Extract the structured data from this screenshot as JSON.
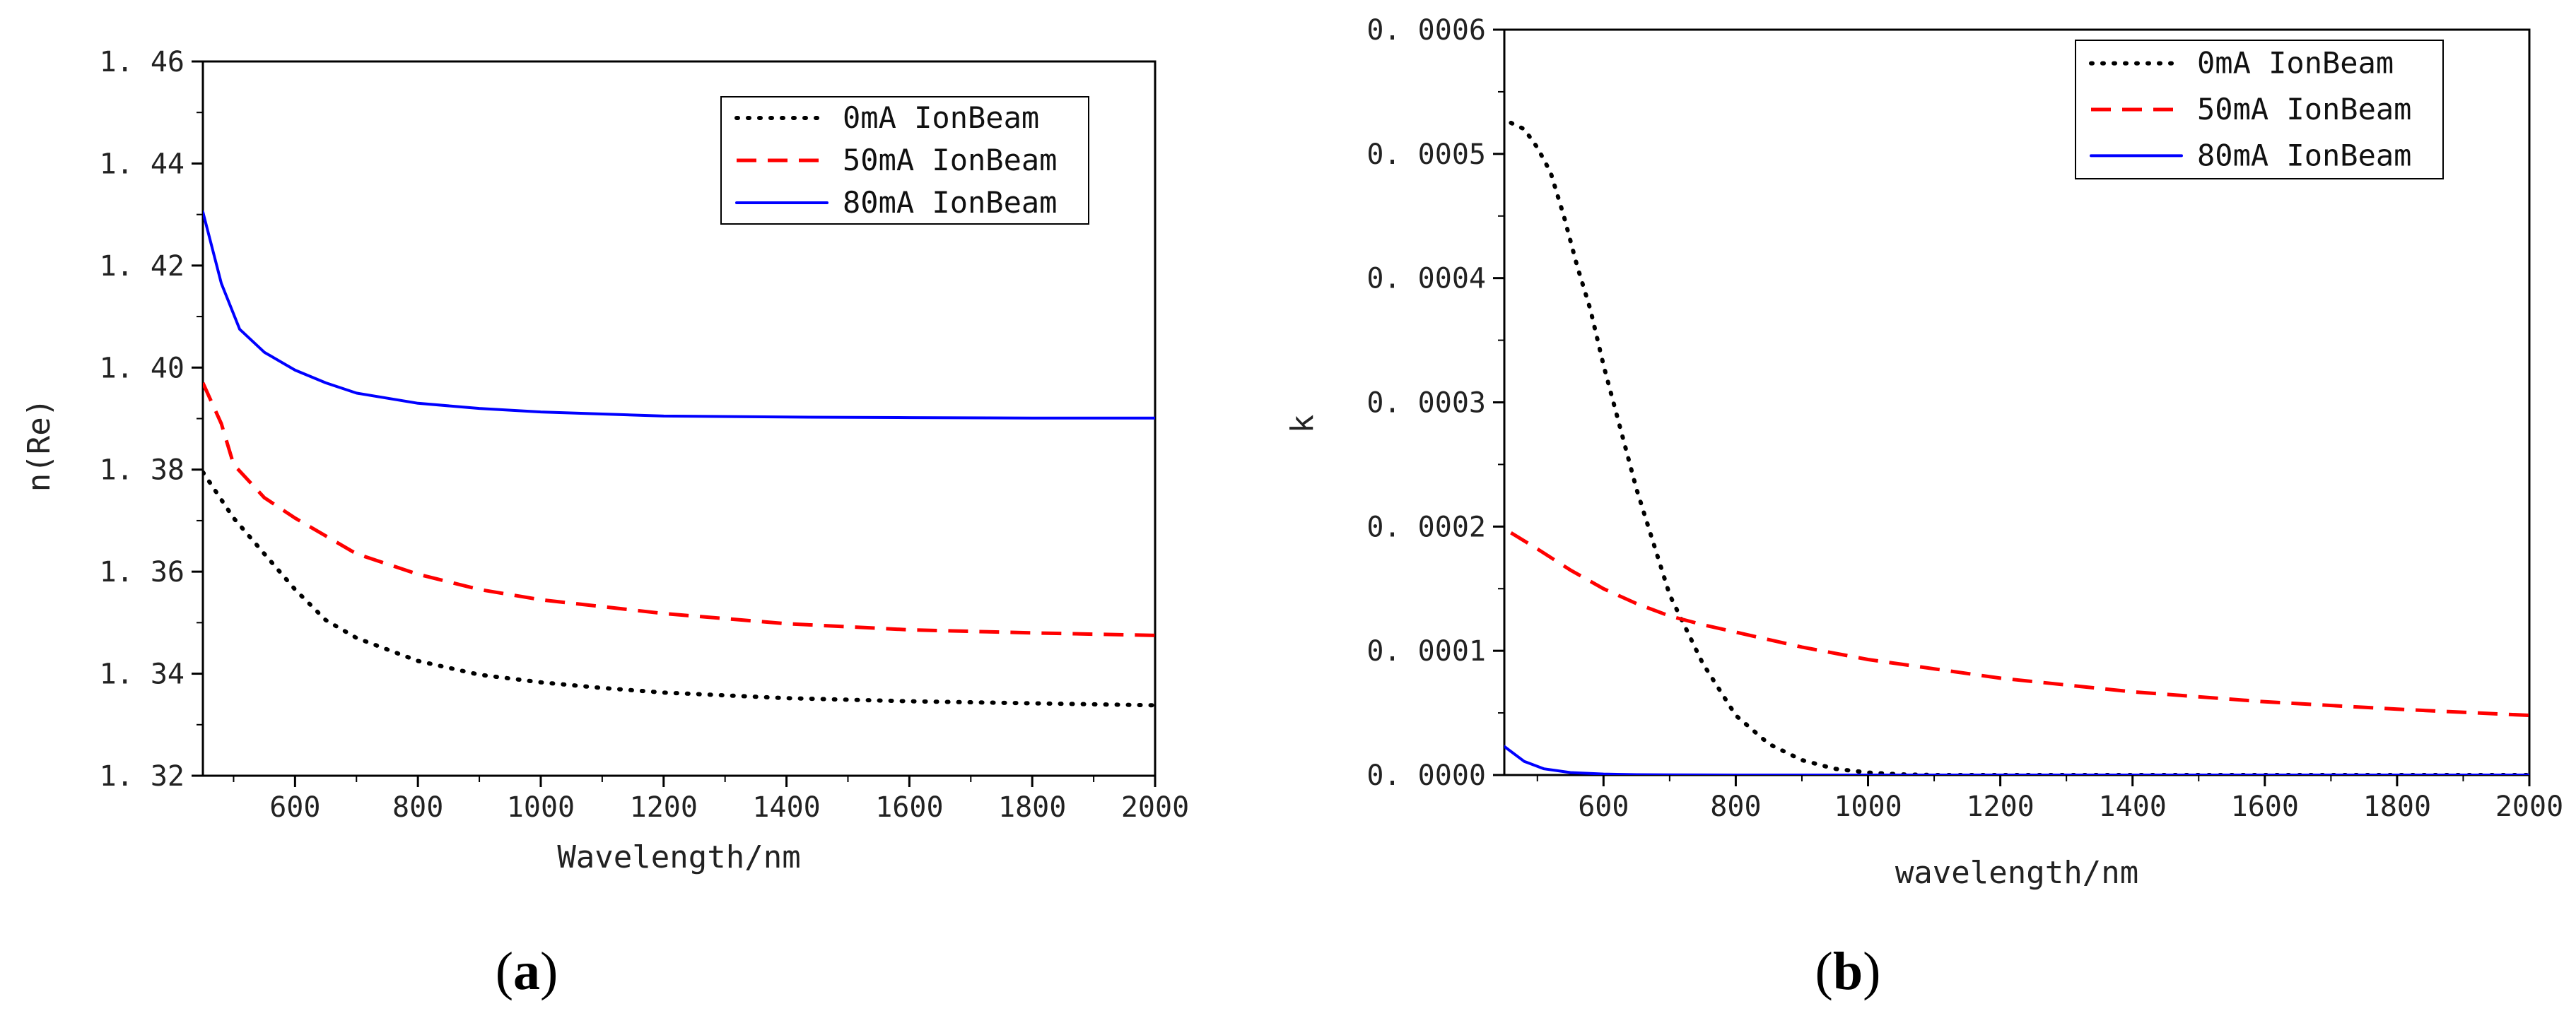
{
  "figure": {
    "captions": [
      {
        "open": "(",
        "letter": "a",
        "close": ")"
      },
      {
        "open": "(",
        "letter": "b",
        "close": ")"
      }
    ]
  },
  "chart_data": [
    {
      "type": "line",
      "title": "",
      "xlabel": "Wavelength/nm",
      "ylabel": "n(Re)",
      "xlim": [
        450,
        2000
      ],
      "ylim": [
        1.32,
        1.46
      ],
      "xticks": [
        600,
        800,
        1000,
        1200,
        1400,
        1600,
        1800,
        2000
      ],
      "xtick_labels": [
        "600",
        "800",
        "1000",
        "1200",
        "1400",
        "1600",
        "1800",
        "2000"
      ],
      "yticks": [
        1.32,
        1.34,
        1.36,
        1.38,
        1.4,
        1.42,
        1.44,
        1.46
      ],
      "ytick_labels": [
        "1. 32",
        "1. 34",
        "1. 36",
        "1. 38",
        "1. 40",
        "1. 42",
        "1. 44",
        "1. 46"
      ],
      "legend_position": "top-right",
      "grid": false,
      "series": [
        {
          "name": "0mA IonBeam",
          "color": "#000000",
          "dash": "dotted",
          "x": [
            450,
            500,
            550,
            600,
            650,
            700,
            800,
            900,
            1000,
            1100,
            1200,
            1400,
            1600,
            1800,
            2000
          ],
          "y": [
            1.3795,
            1.3705,
            1.3635,
            1.3565,
            1.3505,
            1.347,
            1.3425,
            1.3398,
            1.3383,
            1.3372,
            1.3363,
            1.3352,
            1.3346,
            1.3342,
            1.3338
          ]
        },
        {
          "name": "50mA IonBeam",
          "color": "#ff0000",
          "dash": "dashed",
          "x": [
            450,
            480,
            500,
            550,
            600,
            700,
            800,
            900,
            1000,
            1200,
            1400,
            1600,
            1800,
            2000
          ],
          "y": [
            1.397,
            1.389,
            1.381,
            1.3745,
            1.3705,
            1.3635,
            1.3595,
            1.3565,
            1.3545,
            1.3518,
            1.3498,
            1.3486,
            1.348,
            1.3475
          ]
        },
        {
          "name": "80mA IonBeam",
          "color": "#0000ff",
          "dash": "solid",
          "x": [
            450,
            480,
            510,
            550,
            600,
            650,
            700,
            800,
            900,
            1000,
            1200,
            1400,
            1600,
            1800,
            2000
          ],
          "y": [
            1.4305,
            1.4165,
            1.4075,
            1.403,
            1.3995,
            1.397,
            1.395,
            1.393,
            1.392,
            1.3913,
            1.3905,
            1.3903,
            1.3902,
            1.3901,
            1.3901
          ]
        }
      ]
    },
    {
      "type": "line",
      "title": "",
      "xlabel": "wavelength/nm",
      "ylabel": "k",
      "xlim": [
        450,
        2000
      ],
      "ylim": [
        0,
        0.0006
      ],
      "xticks": [
        600,
        800,
        1000,
        1200,
        1400,
        1600,
        1800,
        2000
      ],
      "xtick_labels": [
        "600",
        "800",
        "1000",
        "1200",
        "1400",
        "1600",
        "1800",
        "2000"
      ],
      "yticks": [
        0,
        0.0001,
        0.0002,
        0.0003,
        0.0004,
        0.0005,
        0.0006
      ],
      "ytick_labels": [
        "0. 0000",
        "0. 0001",
        "0. 0002",
        "0. 0003",
        "0. 0004",
        "0. 0005",
        "0. 0006"
      ],
      "legend_position": "top-right",
      "grid": false,
      "series": [
        {
          "name": "0mA IonBeam",
          "color": "#000000",
          "dash": "dotted",
          "x": [
            460,
            480,
            500,
            520,
            540,
            560,
            580,
            600,
            620,
            650,
            700,
            750,
            800,
            850,
            900,
            950,
            1000,
            1050,
            1100,
            1200,
            1400,
            1600,
            1800,
            2000
          ],
          "y": [
            0.000525,
            0.00052,
            0.000505,
            0.000485,
            0.00045,
            0.00041,
            0.000375,
            0.00033,
            0.00029,
            0.00023,
            0.000145,
            9e-05,
            4.8e-05,
            2.5e-05,
            1.2e-05,
            5e-06,
            2e-06,
            5e-07,
            0,
            0,
            0,
            0,
            0,
            0
          ]
        },
        {
          "name": "50mA IonBeam",
          "color": "#ff0000",
          "dash": "dashed",
          "x": [
            460,
            500,
            550,
            600,
            650,
            700,
            750,
            800,
            900,
            1000,
            1200,
            1400,
            1600,
            1800,
            2000
          ],
          "y": [
            0.000195,
            0.000182,
            0.000165,
            0.00015,
            0.000138,
            0.000128,
            0.000121,
            0.000115,
            0.000103,
            9.3e-05,
            7.8e-05,
            6.7e-05,
            5.9e-05,
            5.3e-05,
            4.8e-05
          ]
        },
        {
          "name": "80mA IonBeam",
          "color": "#0000ff",
          "dash": "solid",
          "x": [
            450,
            480,
            510,
            550,
            600,
            650,
            700,
            800,
            1000,
            1200,
            1500,
            2000
          ],
          "y": [
            2.3e-05,
            1.1e-05,
            5e-06,
            2e-06,
            8e-07,
            3e-07,
            1e-07,
            0,
            0,
            0,
            0,
            0
          ]
        }
      ]
    }
  ]
}
